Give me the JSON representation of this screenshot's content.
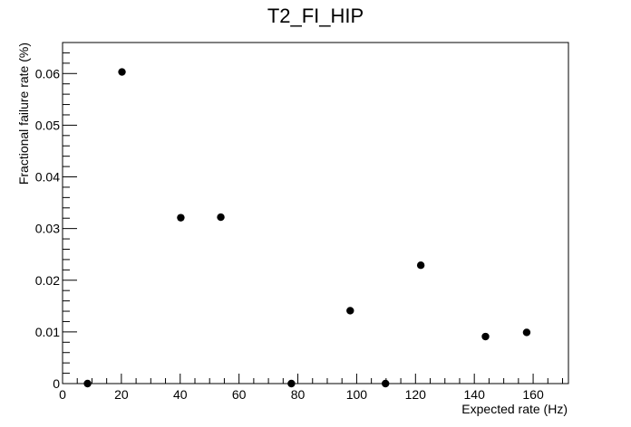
{
  "chart_data": {
    "type": "scatter",
    "title": "T2_FI_HIP",
    "xlabel": "Expected rate (Hz)",
    "ylabel": "Fractional failure rate (%)",
    "xlim": [
      0,
      172
    ],
    "ylim": [
      0,
      0.066
    ],
    "x_ticks": [
      0,
      20,
      40,
      60,
      80,
      100,
      120,
      140,
      160
    ],
    "y_ticks": [
      0,
      0.01,
      0.02,
      0.03,
      0.04,
      0.05,
      0.06
    ],
    "x_tick_labels": [
      "0",
      "20",
      "40",
      "60",
      "80",
      "100",
      "120",
      "140",
      "160"
    ],
    "y_tick_labels": [
      "0",
      "0.01",
      "0.02",
      "0.03",
      "0.04",
      "0.05",
      "0.06"
    ],
    "grid": false,
    "marker_color": "#000000",
    "points": [
      {
        "x": 8.5,
        "y": 0.0
      },
      {
        "x": 20.2,
        "y": 0.0603
      },
      {
        "x": 40.2,
        "y": 0.0321
      },
      {
        "x": 53.8,
        "y": 0.0322
      },
      {
        "x": 77.8,
        "y": 0.0
      },
      {
        "x": 97.8,
        "y": 0.0141
      },
      {
        "x": 109.8,
        "y": 0.0
      },
      {
        "x": 121.8,
        "y": 0.0229
      },
      {
        "x": 143.8,
        "y": 0.0091
      },
      {
        "x": 157.8,
        "y": 0.0099
      }
    ]
  }
}
